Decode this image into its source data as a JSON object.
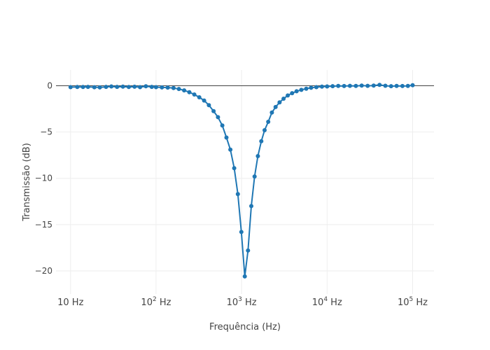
{
  "chart_data": {
    "type": "line",
    "xlabel": "Frequência (Hz)",
    "ylabel": "Transmissão (dB)",
    "x_scale": "log",
    "xlim_log10": [
      0.83,
      5.25
    ],
    "ylim": [
      -22.5,
      1.7
    ],
    "x_ticks": [
      {
        "value": 10,
        "base": "10 Hz",
        "exp": ""
      },
      {
        "value": 100,
        "base": "10",
        "exp": "2",
        "unit": " Hz"
      },
      {
        "value": 1000,
        "base": "10",
        "exp": "3",
        "unit": " Hz"
      },
      {
        "value": 10000,
        "base": "10",
        "exp": "4",
        "unit": " Hz"
      },
      {
        "value": 100000,
        "base": "10",
        "exp": "5",
        "unit": " Hz"
      }
    ],
    "y_ticks": [
      {
        "value": 0,
        "label": "0"
      },
      {
        "value": -5,
        "label": "−5"
      },
      {
        "value": -10,
        "label": "−10"
      },
      {
        "value": -15,
        "label": "−15"
      },
      {
        "value": -20,
        "label": "−20"
      }
    ],
    "grid": true,
    "zero_line": true,
    "series": [
      {
        "color": "#1f77b4",
        "marker": "circle",
        "x": [
          10,
          12,
          14,
          16,
          19,
          22,
          26,
          30,
          35,
          41,
          48,
          56,
          65,
          76,
          89,
          100,
          117,
          137,
          160,
          185,
          213,
          245,
          280,
          320,
          365,
          415,
          470,
          530,
          595,
          665,
          740,
          820,
          905,
          995,
          1090,
          1190,
          1300,
          1420,
          1550,
          1700,
          1860,
          2050,
          2260,
          2500,
          2780,
          3100,
          3470,
          3900,
          4400,
          5000,
          5700,
          6500,
          7500,
          8700,
          10000,
          11600,
          13500,
          15800,
          18500,
          21700,
          25400,
          29800,
          35000,
          41000,
          48000,
          56000,
          65000,
          76000,
          88000,
          100000
        ],
        "y": [
          -0.15,
          -0.13,
          -0.14,
          -0.12,
          -0.16,
          -0.18,
          -0.12,
          -0.08,
          -0.12,
          -0.1,
          -0.13,
          -0.11,
          -0.15,
          -0.06,
          -0.12,
          -0.15,
          -0.18,
          -0.2,
          -0.25,
          -0.35,
          -0.5,
          -0.7,
          -0.95,
          -1.25,
          -1.6,
          -2.1,
          -2.75,
          -3.4,
          -4.3,
          -5.6,
          -6.9,
          -8.9,
          -11.7,
          -15.8,
          -20.6,
          -17.8,
          -13.0,
          -9.8,
          -7.6,
          -6.0,
          -4.8,
          -3.9,
          -2.9,
          -2.3,
          -1.8,
          -1.4,
          -1.05,
          -0.8,
          -0.6,
          -0.45,
          -0.32,
          -0.22,
          -0.15,
          -0.1,
          -0.08,
          -0.05,
          -0.02,
          -0.03,
          -0.01,
          -0.02,
          0.01,
          -0.01,
          0.02,
          0.1,
          0.0,
          -0.05,
          -0.02,
          -0.03,
          -0.02,
          0.05
        ]
      }
    ]
  }
}
